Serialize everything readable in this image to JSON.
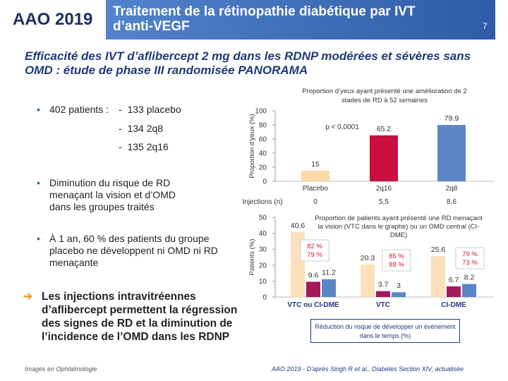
{
  "header": {
    "logo": "AAO 2019",
    "title": "Traitement de la rétinopathie diabétique par IVT d’anti-VEGF",
    "page": "7"
  },
  "subtitle": "Efficacité des IVT d’aflibercept 2 mg dans les RDNP modérées et sévères sans OMD : étude de phase III randomisée PANORAMA",
  "bullets": [
    {
      "text": "402 patients :",
      "items": [
        "133 placebo",
        "134 2q8",
        "135 2q16"
      ]
    },
    {
      "text": "Diminution du risque de RD menaçant la vision et d’OMD dans les groupes traités"
    },
    {
      "text": "À 1 an, 60 % des patients du groupe placebo ne développent ni OMD ni RD menaçante"
    }
  ],
  "conclusion": "Les injections intravitréennes d’aflibercept permettent la régression des signes de RD et la diminution de l’incidence de l’OMD dans les RDNP",
  "footer": {
    "left": "Images en Ophtalmologie",
    "right": "AAO 2019 - D’après Singh R et al., Diabetes Section XIV, actualisée"
  },
  "chart_data": [
    {
      "type": "bar",
      "title": "Proportion d’yeux ayant présenté une amélioration de 2 stades de RD à 52 semaines",
      "y_label": "Proportion d’yeux (%)",
      "categories": [
        "Placebo",
        "2q16",
        "2q8"
      ],
      "values": [
        15,
        65.2,
        79.9
      ],
      "colors": [
        "#fbd9a9",
        "#c8113f",
        "#5b87c7"
      ],
      "ylim": [
        0,
        100
      ],
      "yticks": [
        0,
        20,
        40,
        60,
        80,
        100
      ],
      "annotation": "p < 0,0001",
      "injections": {
        "label": "Injections (n)",
        "values": [
          "0",
          "5,5",
          "8,6"
        ]
      }
    },
    {
      "type": "bar",
      "title": "Proportion de patients ayant présenté une RD menaçant la vision (VTC dans le graphe) ou un OMD central (CI-DME)",
      "y_label": "Patients (%)",
      "categories": [
        "VTC ou CI-DME",
        "VTC",
        "CI-DME"
      ],
      "series": [
        {
          "color": "#fbe0bb",
          "values": [
            40.6,
            20.3,
            25.6
          ]
        },
        {
          "color": "#a3195b",
          "values": [
            9.6,
            3.7,
            6.7
          ]
        },
        {
          "color": "#5b87c7",
          "values": [
            11.2,
            3,
            8.2
          ]
        }
      ],
      "ylim": [
        0,
        50
      ],
      "yticks": [
        0,
        10,
        20,
        30,
        40,
        50
      ],
      "annotations": [
        [
          "82 %",
          "79 %"
        ],
        [
          "85 %",
          "88 %"
        ],
        [
          "79 %",
          "73 %"
        ]
      ],
      "caption": "Réduction du risque de développer un événement dans le temps (%)"
    }
  ]
}
